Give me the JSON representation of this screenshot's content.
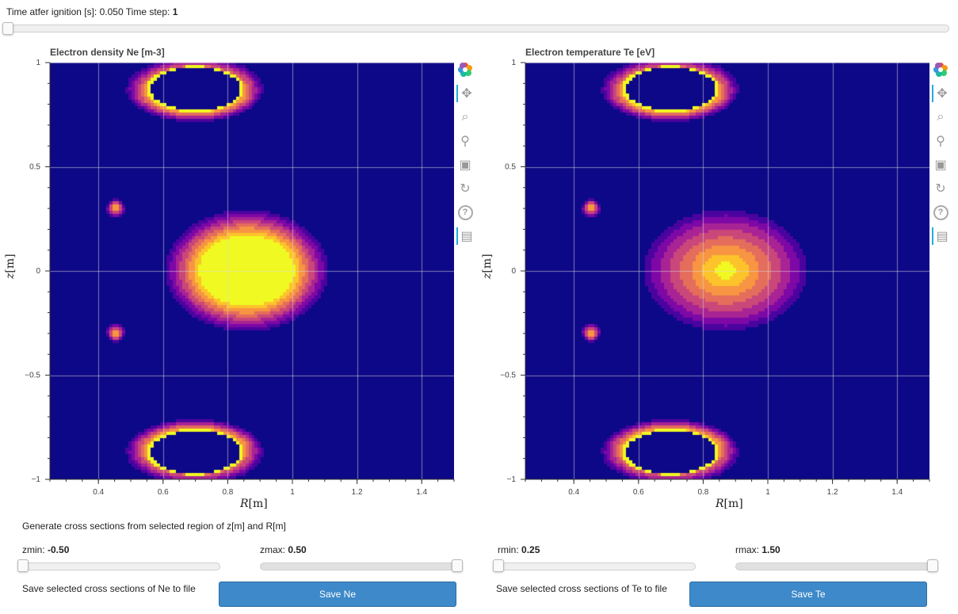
{
  "header": {
    "time_label": "Time atfer ignition [s]:",
    "time_value": "0.050",
    "step_label": "Time step:",
    "step_value": "1"
  },
  "time_slider": {
    "value": 1
  },
  "plots": [
    {
      "title": "Electron density Ne [m-3]",
      "field": "ne"
    },
    {
      "title": "Electron temperature Te [eV]",
      "field": "te"
    }
  ],
  "axes": {
    "x_ticks": [
      "0.4",
      "0.6",
      "0.8",
      "1",
      "1.2",
      "1.4"
    ],
    "y_ticks": [
      "1",
      "0.5",
      "0",
      "−0.5",
      "−1"
    ],
    "xlabel_sym": "R",
    "xlabel_unit": "[m]",
    "ylabel_sym": "z",
    "ylabel_unit": "[m]"
  },
  "toolbar": [
    "bokeh-logo-icon",
    "pan-icon",
    "box-zoom-icon",
    "wheel-zoom-icon",
    "save-icon",
    "reset-icon",
    "help-icon",
    "hover-icon"
  ],
  "colors": {
    "background": "#0c0786",
    "palette": "plasma",
    "button": "#3d89c9"
  },
  "chart_data": [
    {
      "type": "heatmap",
      "title": "Electron density Ne [m-3]",
      "xlabel": "R[m]",
      "ylabel": "z[m]",
      "xlim": [
        0.25,
        1.5
      ],
      "ylim": [
        -1,
        1
      ],
      "x_ticks": [
        0.4,
        0.6,
        0.8,
        1.0,
        1.2,
        1.4
      ],
      "y_ticks": [
        -1,
        -0.5,
        0,
        0.5,
        1
      ],
      "grid": true,
      "features": [
        {
          "kind": "core",
          "R": 0.86,
          "z": 0.0,
          "radius_R": 0.26,
          "radius_z": 0.3
        },
        {
          "kind": "coil-ring",
          "R": 0.7,
          "z": 0.87,
          "radius_R": 0.15,
          "radius_z": 0.11
        },
        {
          "kind": "coil-ring",
          "R": 0.7,
          "z": -0.87,
          "radius_R": 0.15,
          "radius_z": 0.11
        },
        {
          "kind": "spot",
          "R": 0.455,
          "z": 0.3
        },
        {
          "kind": "spot",
          "R": 0.455,
          "z": -0.3
        }
      ]
    },
    {
      "type": "heatmap",
      "title": "Electron temperature Te [eV]",
      "xlabel": "R[m]",
      "ylabel": "z[m]",
      "xlim": [
        0.25,
        1.5
      ],
      "ylim": [
        -1,
        1
      ],
      "x_ticks": [
        0.4,
        0.6,
        0.8,
        1.0,
        1.2,
        1.4
      ],
      "y_ticks": [
        -1,
        -0.5,
        0,
        0.5,
        1
      ],
      "grid": true,
      "features": [
        {
          "kind": "core",
          "R": 0.87,
          "z": 0.0,
          "radius_R": 0.26,
          "radius_z": 0.3
        },
        {
          "kind": "coil-ring",
          "R": 0.7,
          "z": 0.87,
          "radius_R": 0.15,
          "radius_z": 0.11
        },
        {
          "kind": "coil-ring",
          "R": 0.7,
          "z": -0.87,
          "radius_R": 0.15,
          "radius_z": 0.11
        },
        {
          "kind": "spot",
          "R": 0.455,
          "z": 0.3
        },
        {
          "kind": "spot",
          "R": 0.455,
          "z": -0.3
        }
      ]
    }
  ],
  "controls": {
    "generate_label": "Generate cross sections from selected region of z[m] and R[m]",
    "zmin_label": "zmin:",
    "zmin_value": "-0.50",
    "zmax_label": "zmax:",
    "zmax_value": "0.50",
    "rmin_label": "rmin:",
    "rmin_value": "0.25",
    "rmax_label": "rmax:",
    "rmax_value": "1.50",
    "save_ne_text": "Save selected cross sections of Ne to file",
    "save_ne_button": "Save Ne",
    "save_te_text": "Save selected cross sections of Te to file",
    "save_te_button": "Save Te"
  }
}
